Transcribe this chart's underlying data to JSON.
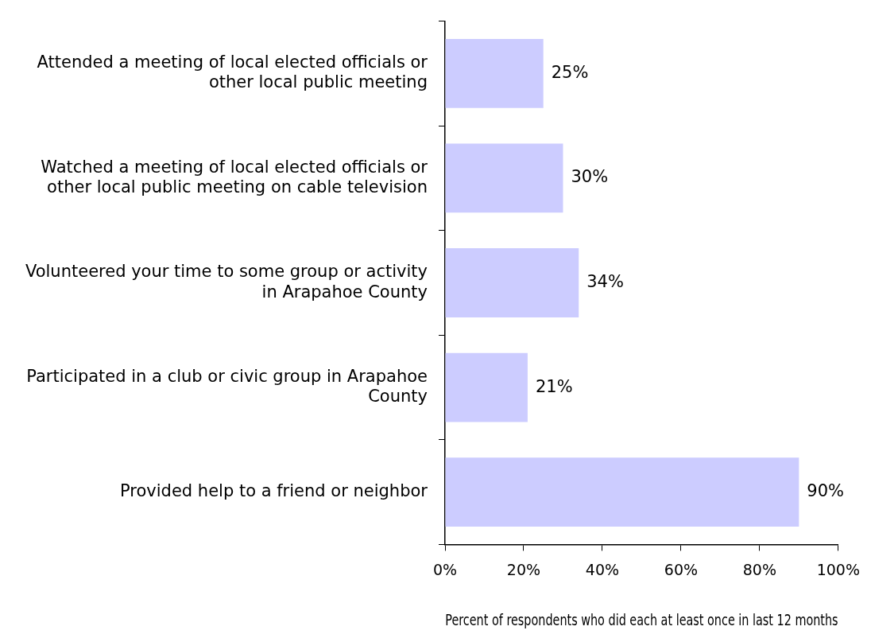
{
  "chart_data": {
    "type": "bar",
    "orientation": "horizontal",
    "xlabel": "Percent of respondents who did each at least once in last 12 months",
    "categories": [
      "Attended a meeting of local elected officials or other local public meeting",
      "Watched a meeting of local elected officials or other local public meeting on cable television",
      "Volunteered your time to some group or activity in Arapahoe County",
      "Participated in a club or civic group in Arapahoe County",
      "Provided help to a friend or neighbor"
    ],
    "values": [
      25,
      30,
      34,
      21,
      90
    ],
    "color": "#ccccff",
    "value_labels": [
      "25%",
      "30%",
      "34%",
      "21%",
      "90%"
    ],
    "xlim": [
      0,
      100
    ],
    "xticks": [
      {
        "value": 0,
        "label": "0%"
      },
      {
        "value": 20,
        "label": "20%"
      },
      {
        "value": 40,
        "label": "40%"
      },
      {
        "value": 60,
        "label": "60%"
      },
      {
        "value": 80,
        "label": "80%"
      },
      {
        "value": 100,
        "label": "100%"
      }
    ],
    "grid": false,
    "legend": false
  }
}
